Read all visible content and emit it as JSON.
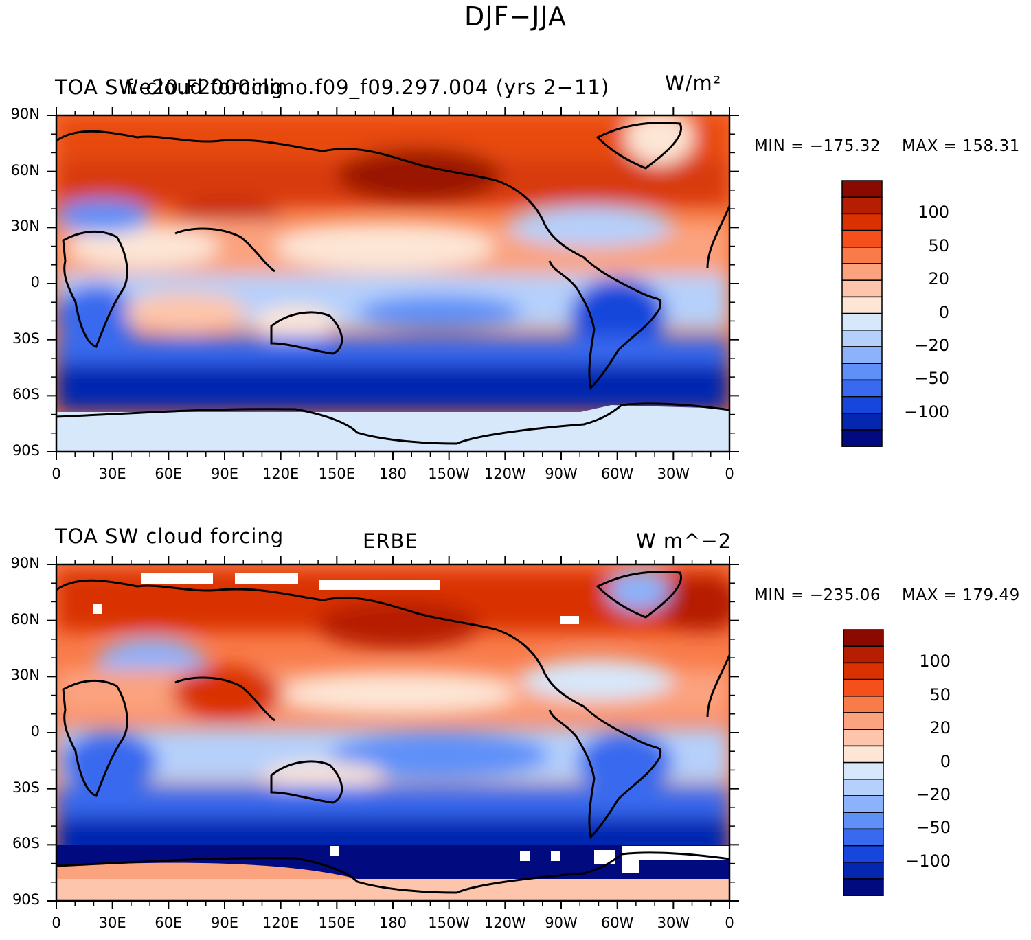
{
  "title": "DJF−JJA",
  "panels": [
    {
      "id": "model",
      "left_title": "TOA SW cloud forcing",
      "center_title": "f.e20.F2000climo.f09_f09.297.004 (yrs 2−11)",
      "right_title": "W/m²",
      "min_label": "MIN = −175.32",
      "max_label": "MAX = 158.31"
    },
    {
      "id": "obs",
      "left_title": "TOA SW cloud forcing",
      "center_title": "ERBE",
      "right_title": "W m^−2",
      "min_label": "MIN = −235.06",
      "max_label": "MAX = 179.49"
    }
  ],
  "x_ticks": [
    "0",
    "30E",
    "60E",
    "90E",
    "120E",
    "150E",
    "180",
    "150W",
    "120W",
    "90W",
    "60W",
    "30W",
    "0"
  ],
  "y_ticks": [
    "90N",
    "60N",
    "30N",
    "0",
    "30S",
    "60S",
    "90S"
  ],
  "colorbar": {
    "labels": [
      "100",
      "50",
      "20",
      "0",
      "−20",
      "−50",
      "−100"
    ],
    "colors": [
      "#8b0a00",
      "#b51e00",
      "#d93200",
      "#f54f1b",
      "#f97b49",
      "#fba27e",
      "#fdc6ac",
      "#fde6d6",
      "#d7e8fb",
      "#b5d0fb",
      "#8cb2fb",
      "#5f90f8",
      "#3869ee",
      "#1646db",
      "#0527b0",
      "#020a80"
    ]
  }
}
